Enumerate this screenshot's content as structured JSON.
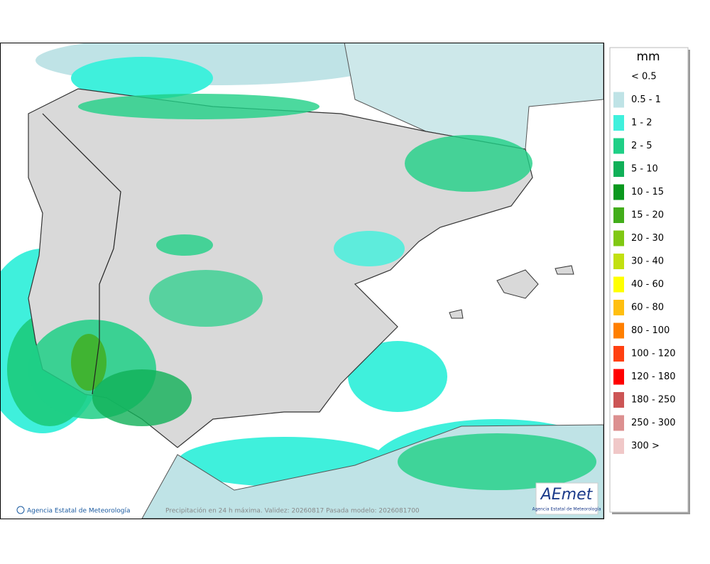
{
  "legend": {
    "title": "mm",
    "items": [
      {
        "label": "< 0.5"
      },
      {
        "label": "0.5 - 1",
        "color": "#bfe3e6"
      },
      {
        "label": "1 - 2",
        "color": "#3ff0dc"
      },
      {
        "label": "2 - 5",
        "color": "#1fcf86"
      },
      {
        "label": "5 - 10",
        "color": "#10b058"
      },
      {
        "label": "10 - 15",
        "color": "#0a981e"
      },
      {
        "label": "15 - 20",
        "color": "#42ad1a"
      },
      {
        "label": "20 - 30",
        "color": "#80c812"
      },
      {
        "label": "30 - 40",
        "color": "#c2e010"
      },
      {
        "label": "40 - 60",
        "color": "#ffff00"
      },
      {
        "label": "60 - 80",
        "color": "#ffbf10"
      },
      {
        "label": "80 - 100",
        "color": "#ff7f00"
      },
      {
        "label": "100 - 120",
        "color": "#ff4010"
      },
      {
        "label": "120 - 180",
        "color": "#ff0000"
      },
      {
        "label": "180 - 250",
        "color": "#cc5555"
      },
      {
        "label": "250 - 300",
        "color": "#dc9090"
      },
      {
        "label": "300 >",
        "color": "#f0c8c8"
      }
    ]
  },
  "footer": {
    "agency": "Agencia Estatal de Meteorología",
    "caption": "Precipitación en 24 h máxima. Validez: 20260817 Pasada modelo: 2026081700"
  },
  "logo": {
    "name": "AEmet",
    "subtitle": "Agencia Estatal de Meteorología"
  }
}
